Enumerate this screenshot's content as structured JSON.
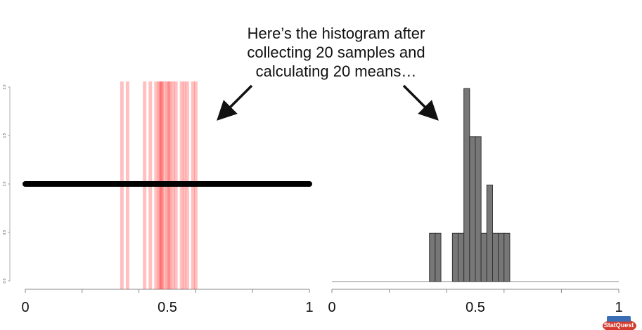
{
  "annotation": {
    "lines": [
      "Here’s the histogram after",
      "collecting 20 samples and",
      "calculating 20 means…"
    ]
  },
  "chart_data": [
    {
      "type": "scatter",
      "description_of_marks": "population density line with sample means as vertical strips",
      "density_line": {
        "x": [
          0,
          1
        ],
        "y": [
          1,
          1
        ]
      },
      "sample_means": [
        0.34,
        0.36,
        0.42,
        0.44,
        0.46,
        0.47,
        0.475,
        0.48,
        0.49,
        0.5,
        0.505,
        0.51,
        0.52,
        0.53,
        0.55,
        0.56,
        0.57,
        0.59,
        0.6,
        0.48
      ],
      "xlim": [
        0,
        1
      ],
      "ylim": [
        0,
        2
      ],
      "x_ticks": [
        0,
        0.5,
        1
      ],
      "x_tick_labels": [
        "0",
        "0.5",
        "1"
      ],
      "y_ticks": [
        0,
        0.5,
        1,
        1.5,
        2
      ],
      "y_tick_labels": [
        "0.0",
        "0.5",
        "1.0",
        "1.5",
        "2.0"
      ],
      "colors": {
        "line": "#000000",
        "means": "#ff3b3b"
      }
    },
    {
      "type": "bar",
      "bins": [
        {
          "start": 0.34,
          "end": 0.36,
          "value": 0.5
        },
        {
          "start": 0.36,
          "end": 0.38,
          "value": 0.5
        },
        {
          "start": 0.42,
          "end": 0.44,
          "value": 0.5
        },
        {
          "start": 0.44,
          "end": 0.46,
          "value": 0.5
        },
        {
          "start": 0.46,
          "end": 0.48,
          "value": 2.0
        },
        {
          "start": 0.48,
          "end": 0.5,
          "value": 1.5
        },
        {
          "start": 0.5,
          "end": 0.52,
          "value": 1.5
        },
        {
          "start": 0.52,
          "end": 0.54,
          "value": 0.5
        },
        {
          "start": 0.54,
          "end": 0.56,
          "value": 1.0
        },
        {
          "start": 0.56,
          "end": 0.58,
          "value": 0.5
        },
        {
          "start": 0.58,
          "end": 0.6,
          "value": 0.5
        },
        {
          "start": 0.6,
          "end": 0.62,
          "value": 0.5
        }
      ],
      "xlim": [
        0,
        1
      ],
      "ylim": [
        0,
        2
      ],
      "x_ticks": [
        0,
        0.5,
        1
      ],
      "x_tick_labels": [
        "0",
        "0.5",
        "1"
      ],
      "colors": {
        "bar": "#777777",
        "edge": "#333333"
      }
    }
  ],
  "logo": {
    "text": "StatQuest"
  }
}
